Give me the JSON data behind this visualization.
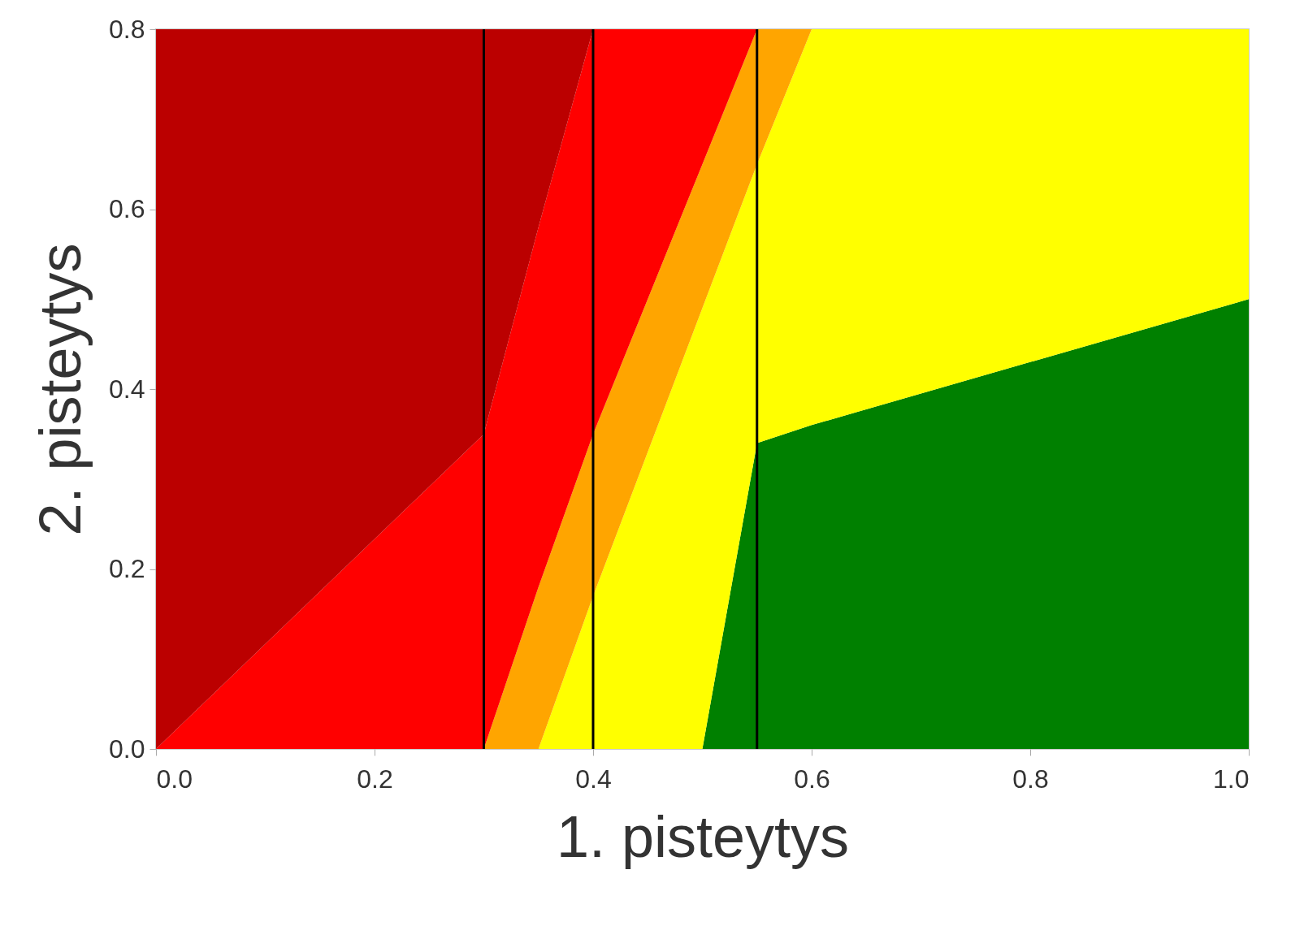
{
  "chart_data": {
    "type": "area",
    "stacked": true,
    "xlabel": "1. pisteytys",
    "ylabel": "2. pisteytys",
    "xlim": [
      0,
      1
    ],
    "ylim": [
      0,
      0.8
    ],
    "xticks": [
      {
        "value": 0,
        "label": "0.0"
      },
      0.2,
      0.4,
      0.6,
      0.8,
      {
        "value": 1,
        "label": "1.0"
      }
    ],
    "yticks": [
      {
        "value": 0,
        "label": "0.0"
      },
      0.2,
      0.4,
      0.6,
      0.8
    ],
    "grid": false,
    "legend": false,
    "x": [
      0,
      0.3,
      0.35,
      0.4,
      0.45,
      0.5,
      0.55,
      0.6,
      1
    ],
    "series": [
      {
        "color": "#008000",
        "values": [
          null,
          null,
          null,
          null,
          null,
          0,
          0.34,
          0.36,
          0.5
        ]
      },
      {
        "color": "#ffff00",
        "values": [
          null,
          null,
          0,
          0.17,
          0.33,
          0.49,
          0.31,
          0.44,
          0.3
        ]
      },
      {
        "color": "#ffa500",
        "values": [
          null,
          0,
          0.18,
          0.18,
          0.17,
          0.16,
          0.15,
          0,
          null
        ]
      },
      {
        "color": "#ff0000",
        "values": [
          0,
          0.35,
          0.4,
          0.45,
          0.3,
          0.15,
          0,
          null,
          null
        ]
      },
      {
        "color": "#bb0000",
        "values": [
          0.8,
          0.45,
          0.22,
          0,
          null,
          null,
          null,
          null,
          null
        ]
      }
    ],
    "ref_lines": [
      {
        "axis": "x",
        "value": 0.3,
        "color": "#000000"
      },
      {
        "axis": "x",
        "value": 0.4,
        "color": "#000000"
      },
      {
        "axis": "x",
        "value": 0.55,
        "color": "#000000"
      }
    ]
  }
}
